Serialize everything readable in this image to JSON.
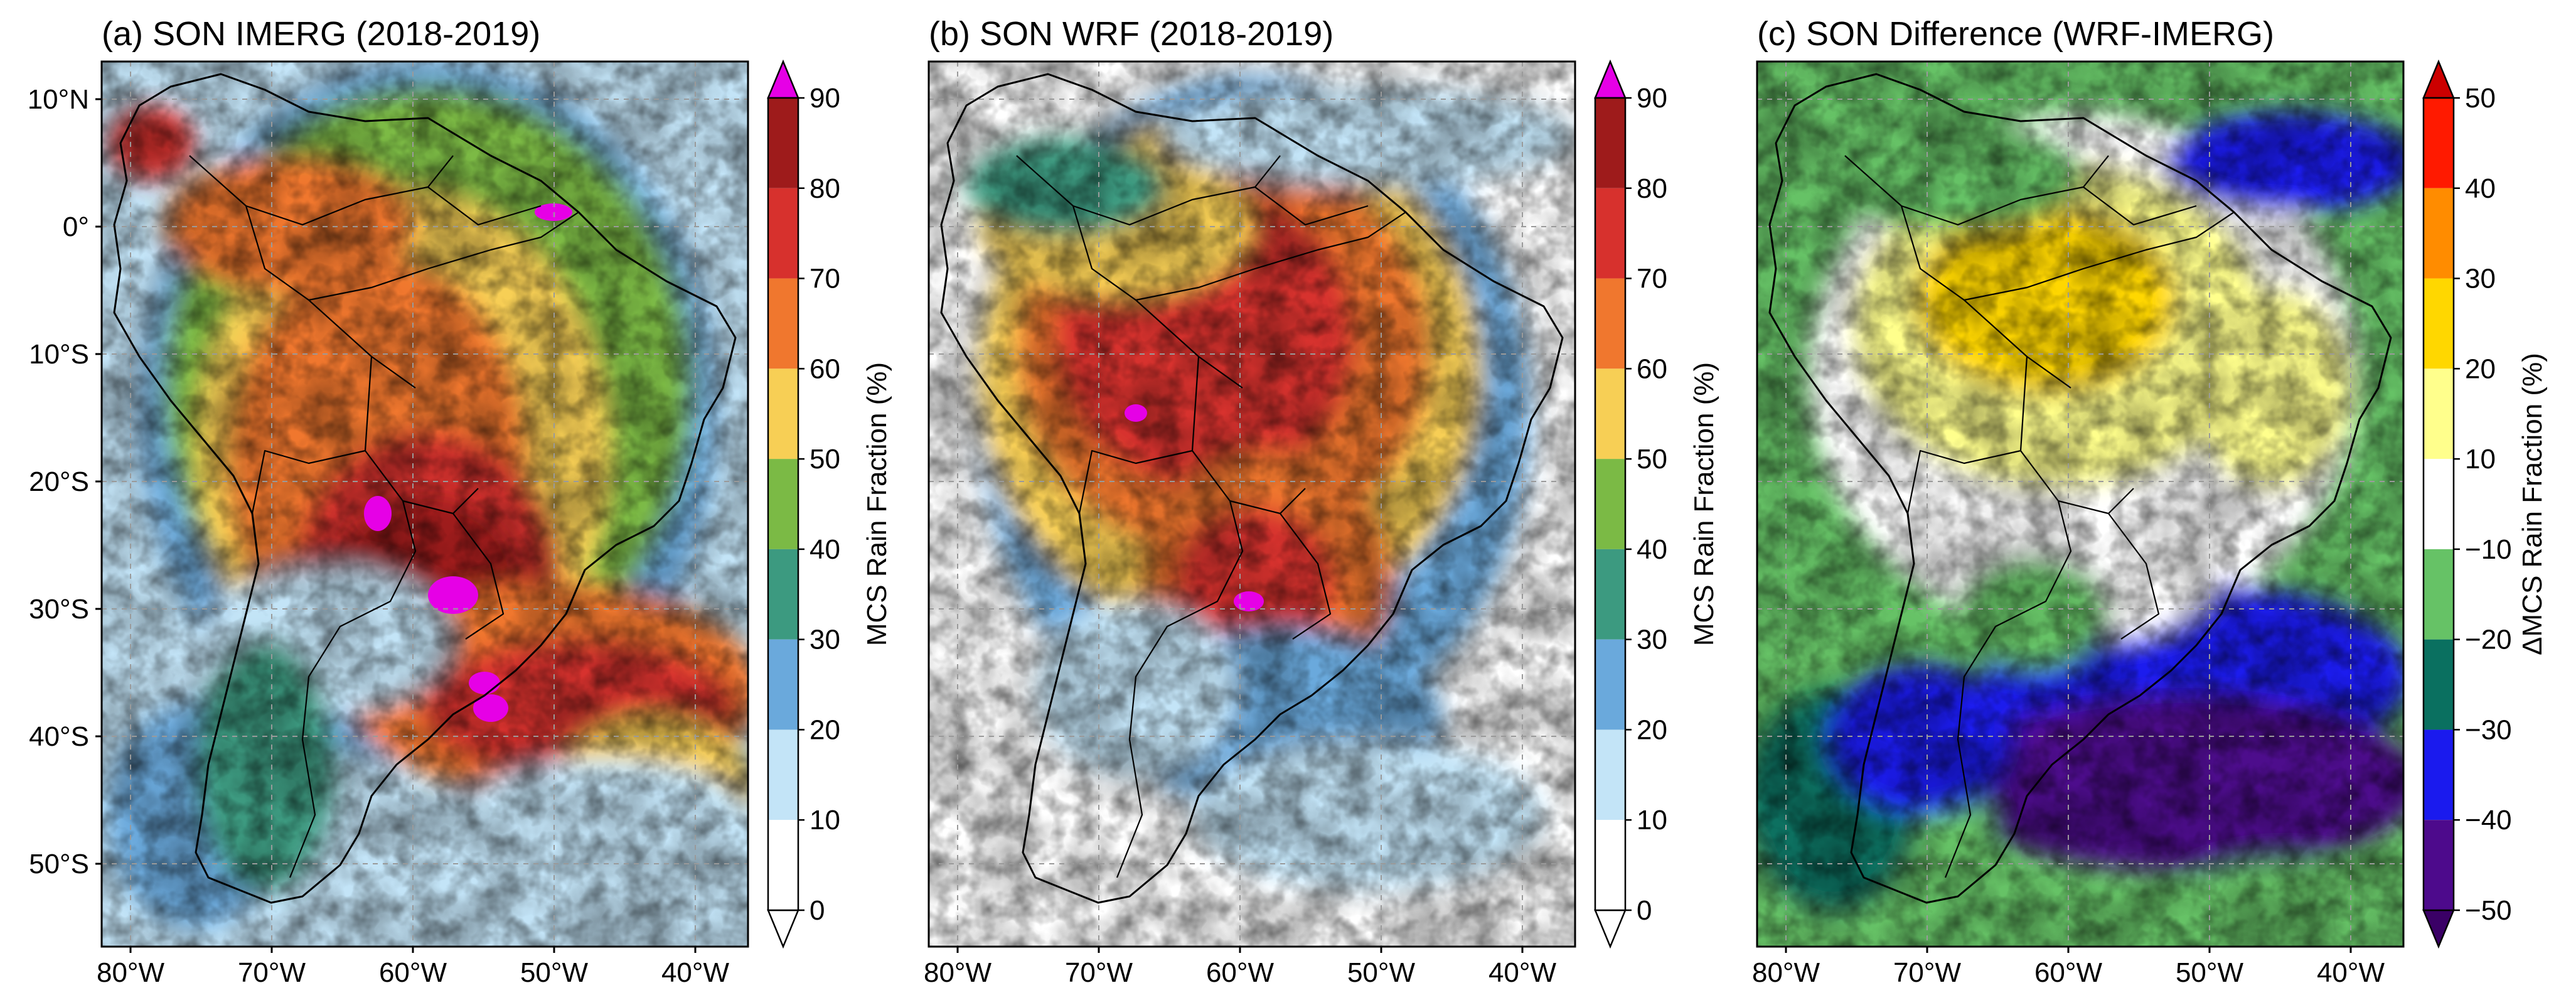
{
  "figure": {
    "lon_labels": [
      "80°W",
      "70°W",
      "60°W",
      "50°W",
      "40°W"
    ],
    "lat_labels": [
      "10°N",
      "0°",
      "10°S",
      "20°S",
      "30°S",
      "40°S",
      "50°S"
    ],
    "panels": [
      {
        "title": "(a) SON IMERG (2018-2019)",
        "colorbar": {
          "label": "MCS Rain Fraction (%)",
          "ticks": [
            "90",
            "80",
            "70",
            "60",
            "50",
            "40",
            "30",
            "20",
            "10",
            "0"
          ],
          "colors": [
            "#9e1b1b",
            "#d7312d",
            "#f0772e",
            "#f7cf55",
            "#7bba45",
            "#3c9a80",
            "#6aa9dc",
            "#c3e4f7",
            "#ffffff"
          ],
          "over_color": "#e600e6",
          "under_color": "#ffffff"
        }
      },
      {
        "title": "(b) SON WRF (2018-2019)",
        "colorbar": {
          "label": "MCS Rain Fraction (%)",
          "ticks": [
            "90",
            "80",
            "70",
            "60",
            "50",
            "40",
            "30",
            "20",
            "10",
            "0"
          ],
          "colors": [
            "#9e1b1b",
            "#d7312d",
            "#f0772e",
            "#f7cf55",
            "#7bba45",
            "#3c9a80",
            "#6aa9dc",
            "#c3e4f7",
            "#ffffff"
          ],
          "over_color": "#e600e6",
          "under_color": "#ffffff"
        }
      },
      {
        "title": "(c) SON Difference (WRF-IMERG)",
        "colorbar": {
          "label": "ΔMCS Rain Fraction (%)",
          "ticks": [
            "50",
            "40",
            "30",
            "20",
            "10",
            "−10",
            "−20",
            "−30",
            "−40",
            "−50"
          ],
          "colors": [
            "#ff1a00",
            "#ff8c00",
            "#ffd700",
            "#ffff8c",
            "#ffffff",
            "#66c266",
            "#0a7060",
            "#1a1aee",
            "#4d0a8c"
          ],
          "over_color": "#cc0000",
          "under_color": "#3a0066"
        }
      }
    ]
  }
}
